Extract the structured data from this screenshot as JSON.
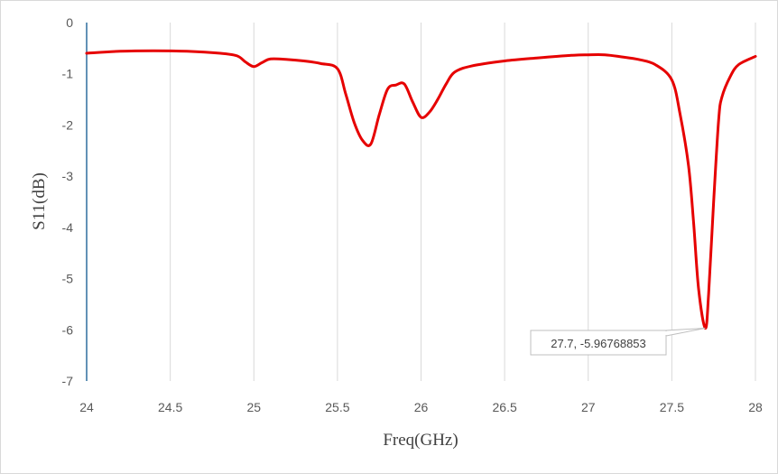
{
  "chart_data": {
    "type": "line",
    "title": "",
    "xlabel": "Freq(GHz)",
    "ylabel": "S11(dB)",
    "xlim": [
      24,
      28
    ],
    "ylim": [
      -7,
      0
    ],
    "x_ticks": [
      "24",
      "24.5",
      "25",
      "25.5",
      "26",
      "26.5",
      "27",
      "27.5",
      "28"
    ],
    "y_ticks": [
      "0",
      "-1",
      "-2",
      "-3",
      "-4",
      "-5",
      "-6",
      "-7"
    ],
    "grid": "vertical",
    "legend": "none",
    "series": [
      {
        "color": "#e60000",
        "x": [
          24.0,
          24.2,
          24.4,
          24.6,
          24.8,
          24.9,
          24.95,
          25.0,
          25.05,
          25.1,
          25.2,
          25.3,
          25.4,
          25.5,
          25.55,
          25.6,
          25.65,
          25.7,
          25.75,
          25.8,
          25.85,
          25.9,
          25.95,
          26.0,
          26.05,
          26.1,
          26.15,
          26.2,
          26.3,
          26.5,
          26.7,
          26.9,
          27.0,
          27.1,
          27.2,
          27.3,
          27.4,
          27.5,
          27.55,
          27.6,
          27.63,
          27.66,
          27.7,
          27.72,
          27.75,
          27.78,
          27.8,
          27.85,
          27.9,
          28.0
        ],
        "y": [
          -0.6,
          -0.56,
          -0.55,
          -0.56,
          -0.6,
          -0.65,
          -0.77,
          -0.86,
          -0.78,
          -0.71,
          -0.72,
          -0.75,
          -0.8,
          -0.9,
          -1.4,
          -1.95,
          -2.3,
          -2.37,
          -1.8,
          -1.3,
          -1.22,
          -1.2,
          -1.55,
          -1.85,
          -1.75,
          -1.5,
          -1.2,
          -0.97,
          -0.85,
          -0.75,
          -0.69,
          -0.64,
          -0.63,
          -0.63,
          -0.67,
          -0.72,
          -0.82,
          -1.12,
          -1.8,
          -2.8,
          -3.9,
          -5.2,
          -5.97,
          -5.3,
          -3.5,
          -1.9,
          -1.45,
          -1.05,
          -0.82,
          -0.66
        ]
      }
    ],
    "annotation": {
      "x": 27.7,
      "y": -5.96768853,
      "label": "27.7, -5.96768853"
    }
  }
}
